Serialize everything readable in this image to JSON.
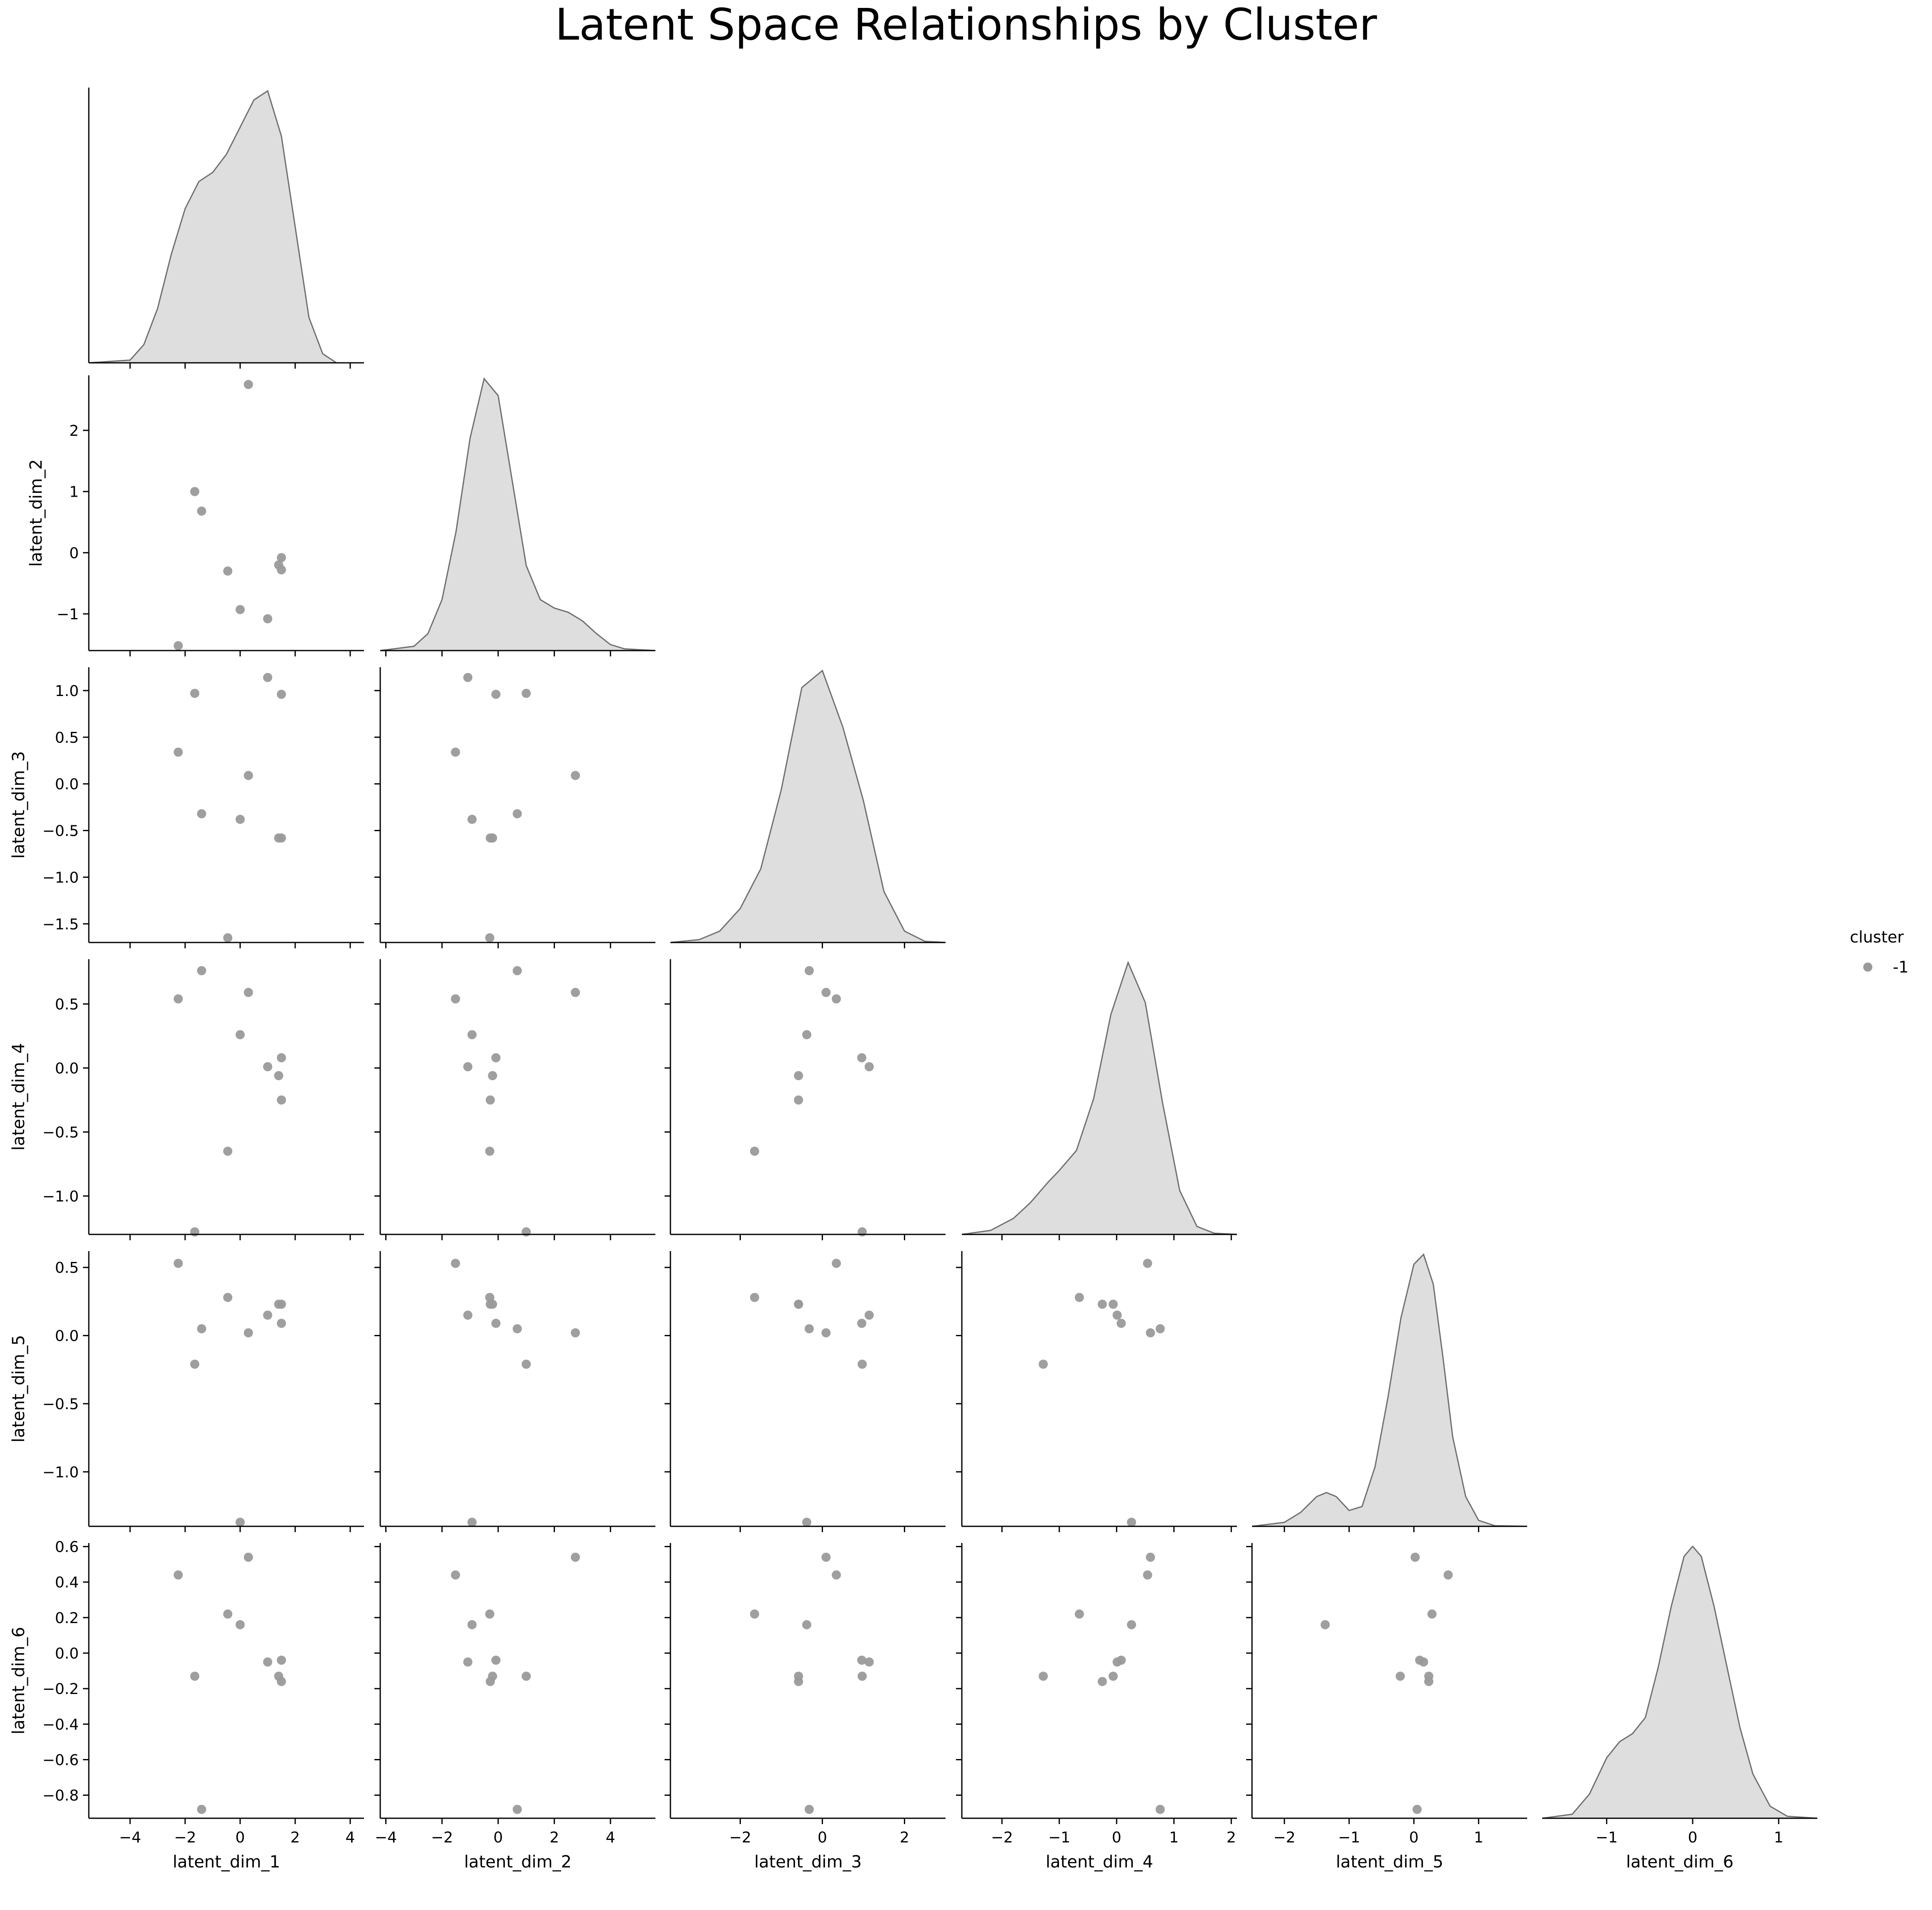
{
  "figure": {
    "title": "Latent Space Relationships by Cluster"
  },
  "legend": {
    "title": "cluster",
    "entries": [
      "-1"
    ]
  },
  "colors": {
    "points": "#9a9a9a",
    "kde_fill": "#dedede",
    "kde_line": "#6e6e6e",
    "axis": "#000000",
    "background": "#ffffff"
  },
  "chart_data": {
    "type": "scatter",
    "layout": "pairplot-lower-triangle-with-kde-diagonal",
    "hue": "cluster",
    "grid": false,
    "legend_position": "right",
    "variables": [
      "latent_dim_1",
      "latent_dim_2",
      "latent_dim_3",
      "latent_dim_4",
      "latent_dim_5",
      "latent_dim_6"
    ],
    "ranges": [
      [
        -5.5,
        4.5
      ],
      [
        -1.6,
        2.9
      ],
      [
        -1.7,
        1.25
      ],
      [
        -1.3,
        0.85
      ],
      [
        -1.4,
        0.62
      ],
      [
        -0.93,
        0.62
      ]
    ],
    "ticks": [
      [
        -4,
        -2,
        0,
        2,
        4
      ],
      [
        -1,
        0,
        1,
        2
      ],
      [
        -1.5,
        -1.0,
        -0.5,
        0.0,
        0.5,
        1.0
      ],
      [
        -1.0,
        -0.5,
        0.0,
        0.5
      ],
      [
        -1.0,
        -0.5,
        0.0,
        0.5
      ],
      [
        -0.8,
        -0.6,
        -0.4,
        -0.2,
        0.0,
        0.2,
        0.4,
        0.6
      ]
    ],
    "x_ranges": [
      [
        -5.5,
        4.5
      ],
      [
        -4.2,
        5.6
      ],
      [
        -3.7,
        3.0
      ],
      [
        -2.7,
        2.1
      ],
      [
        -2.5,
        1.75
      ],
      [
        -1.75,
        1.45
      ]
    ],
    "x_ticks": [
      [
        -4,
        -2,
        0,
        2,
        4
      ],
      [
        -4,
        -2,
        0,
        2,
        4
      ],
      [
        -2,
        0,
        2
      ],
      [
        -2,
        -1,
        0,
        1,
        2
      ],
      [
        -2,
        -1,
        0,
        1
      ],
      [
        -1,
        0,
        1
      ]
    ],
    "tick_labels": [
      [
        "−4",
        "−2",
        "0",
        "2",
        "4"
      ],
      [
        "−1",
        "0",
        "1",
        "2"
      ],
      [
        "−1.5",
        "−1.0",
        "−0.5",
        "0.0",
        "0.5",
        "1.0"
      ],
      [
        "−1.0",
        "−0.5",
        "0.0",
        "0.5"
      ],
      [
        "−1.0",
        "−0.5",
        "0.0",
        "0.5"
      ],
      [
        "−0.8",
        "−0.6",
        "−0.4",
        "−0.2",
        "0.0",
        "0.2",
        "0.4",
        "0.6"
      ]
    ],
    "x_tick_labels": [
      [
        "−4",
        "−2",
        "0",
        "2",
        "4"
      ],
      [
        "−4",
        "−2",
        "0",
        "2",
        "4"
      ],
      [
        "−2",
        "0",
        "2"
      ],
      [
        "−2",
        "−1",
        "0",
        "1",
        "2"
      ],
      [
        "−2",
        "−1",
        "0",
        "1"
      ],
      [
        "−1",
        "0",
        "1"
      ]
    ],
    "series": [
      {
        "name": "-1",
        "points": [
          [
            0.3,
            2.75,
            0.09,
            0.59,
            0.02,
            0.54
          ],
          [
            -1.65,
            1.0,
            0.97,
            -1.28,
            -0.21,
            -0.13
          ],
          [
            -1.4,
            0.68,
            -0.32,
            0.76,
            0.05,
            -0.88
          ],
          [
            -0.45,
            -0.3,
            -1.65,
            -0.65,
            0.28,
            0.22
          ],
          [
            1.5,
            -0.08,
            0.96,
            0.08,
            0.09,
            -0.04
          ],
          [
            1.4,
            -0.2,
            -0.58,
            -0.06,
            0.23,
            -0.13
          ],
          [
            1.5,
            -0.28,
            -0.58,
            -0.25,
            0.23,
            -0.16
          ],
          [
            0.0,
            -0.93,
            -0.38,
            0.26,
            -1.37,
            0.16
          ],
          [
            1.0,
            -1.08,
            1.14,
            0.01,
            0.15,
            -0.05
          ],
          [
            -2.25,
            -1.52,
            0.34,
            0.54,
            0.53,
            0.44
          ]
        ]
      }
    ],
    "kde": [
      {
        "x": [
          -5.5,
          -4,
          -3.5,
          -3,
          -2.5,
          -2,
          -1.5,
          -1,
          -0.5,
          0,
          0.5,
          1,
          1.5,
          2,
          2.5,
          3,
          3.5,
          4.5
        ],
        "y": [
          0.0,
          0.003,
          0.02,
          0.06,
          0.12,
          0.17,
          0.2,
          0.21,
          0.23,
          0.26,
          0.29,
          0.3,
          0.25,
          0.15,
          0.05,
          0.01,
          0.0,
          0.0
        ]
      },
      {
        "x": [
          -4.2,
          -3,
          -2.5,
          -2,
          -1.5,
          -1,
          -0.5,
          0,
          0.5,
          1,
          1.5,
          2,
          2.5,
          3,
          3.5,
          4,
          4.5,
          5.6
        ],
        "y": [
          0.0,
          0.005,
          0.02,
          0.06,
          0.14,
          0.25,
          0.32,
          0.3,
          0.2,
          0.1,
          0.06,
          0.05,
          0.045,
          0.035,
          0.02,
          0.007,
          0.002,
          0.0
        ]
      },
      {
        "x": [
          -3.7,
          -3,
          -2.5,
          -2,
          -1.5,
          -1,
          -0.5,
          0,
          0.5,
          1,
          1.5,
          2,
          2.5,
          3.0
        ],
        "y": [
          0.0,
          0.005,
          0.02,
          0.06,
          0.13,
          0.27,
          0.45,
          0.48,
          0.38,
          0.25,
          0.09,
          0.02,
          0.002,
          0.0
        ]
      },
      {
        "x": [
          -2.7,
          -2.2,
          -1.8,
          -1.5,
          -1.2,
          -1,
          -0.7,
          -0.4,
          -0.1,
          0.2,
          0.5,
          0.8,
          1.1,
          1.4,
          1.7,
          2.1
        ],
        "y": [
          0.0,
          0.01,
          0.04,
          0.08,
          0.13,
          0.16,
          0.21,
          0.34,
          0.55,
          0.68,
          0.58,
          0.33,
          0.11,
          0.02,
          0.003,
          0.0
        ]
      },
      {
        "x": [
          -2.5,
          -2,
          -1.75,
          -1.5,
          -1.35,
          -1.2,
          -1,
          -0.8,
          -0.6,
          -0.4,
          -0.2,
          0,
          0.15,
          0.3,
          0.45,
          0.6,
          0.8,
          1,
          1.25,
          1.75
        ],
        "y": [
          0.0,
          0.02,
          0.07,
          0.15,
          0.17,
          0.15,
          0.08,
          0.1,
          0.3,
          0.65,
          1.05,
          1.32,
          1.37,
          1.22,
          0.85,
          0.45,
          0.15,
          0.03,
          0.003,
          0.0
        ]
      },
      {
        "x": [
          -1.75,
          -1.4,
          -1.2,
          -1,
          -0.85,
          -0.7,
          -0.55,
          -0.4,
          -0.25,
          -0.1,
          0,
          0.1,
          0.25,
          0.4,
          0.55,
          0.7,
          0.9,
          1.1,
          1.45
        ],
        "y": [
          0.0,
          0.02,
          0.12,
          0.3,
          0.38,
          0.42,
          0.5,
          0.75,
          1.05,
          1.3,
          1.35,
          1.3,
          1.05,
          0.75,
          0.45,
          0.22,
          0.06,
          0.01,
          0.0
        ]
      }
    ]
  }
}
